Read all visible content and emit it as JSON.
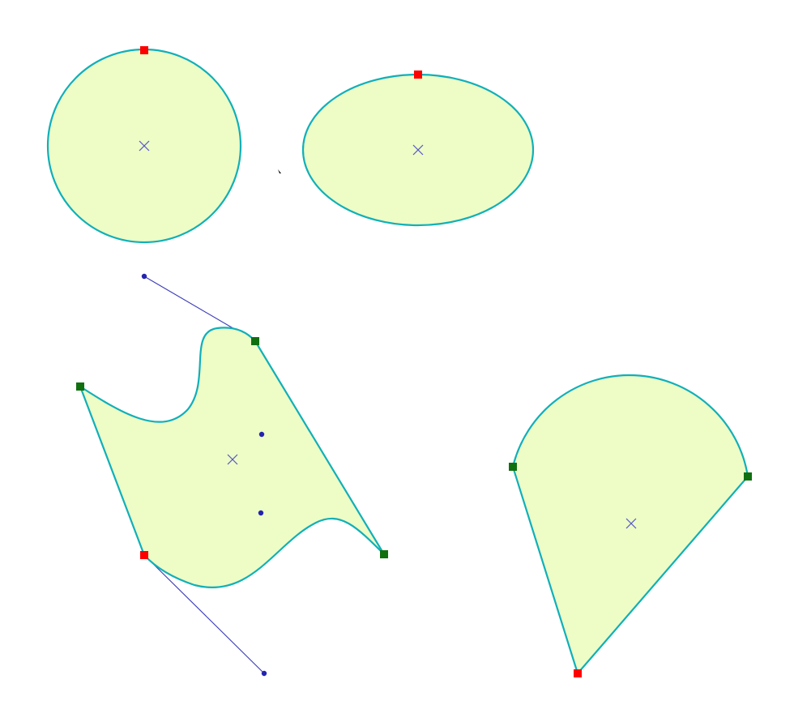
{
  "palette": {
    "fill": "#eefcc6",
    "outline": "#10b0b8",
    "outline_shadow": "#2a6a6a",
    "center_mark": "#5555c8",
    "handle_line": "#3b3bb8",
    "handle_dot": "#2323b0",
    "node_primary": "#ff0000",
    "node_secondary": "#107010"
  },
  "shapes": [
    {
      "kind": "circle",
      "nodes": [
        "primary"
      ],
      "center_marker_icon": "x-cross-icon"
    },
    {
      "kind": "ellipse",
      "nodes": [
        "primary"
      ],
      "center_marker_icon": "x-cross-icon"
    },
    {
      "kind": "bezier-path",
      "nodes": [
        "secondary",
        "secondary",
        "secondary",
        "primary"
      ],
      "center_marker_icon": "x-cross-icon",
      "control_handles": 4
    },
    {
      "kind": "pie-segment",
      "nodes": [
        "secondary",
        "secondary",
        "primary"
      ],
      "center_marker_icon": "x-cross-icon"
    }
  ],
  "cursor_icon": "mouse-cursor-icon"
}
